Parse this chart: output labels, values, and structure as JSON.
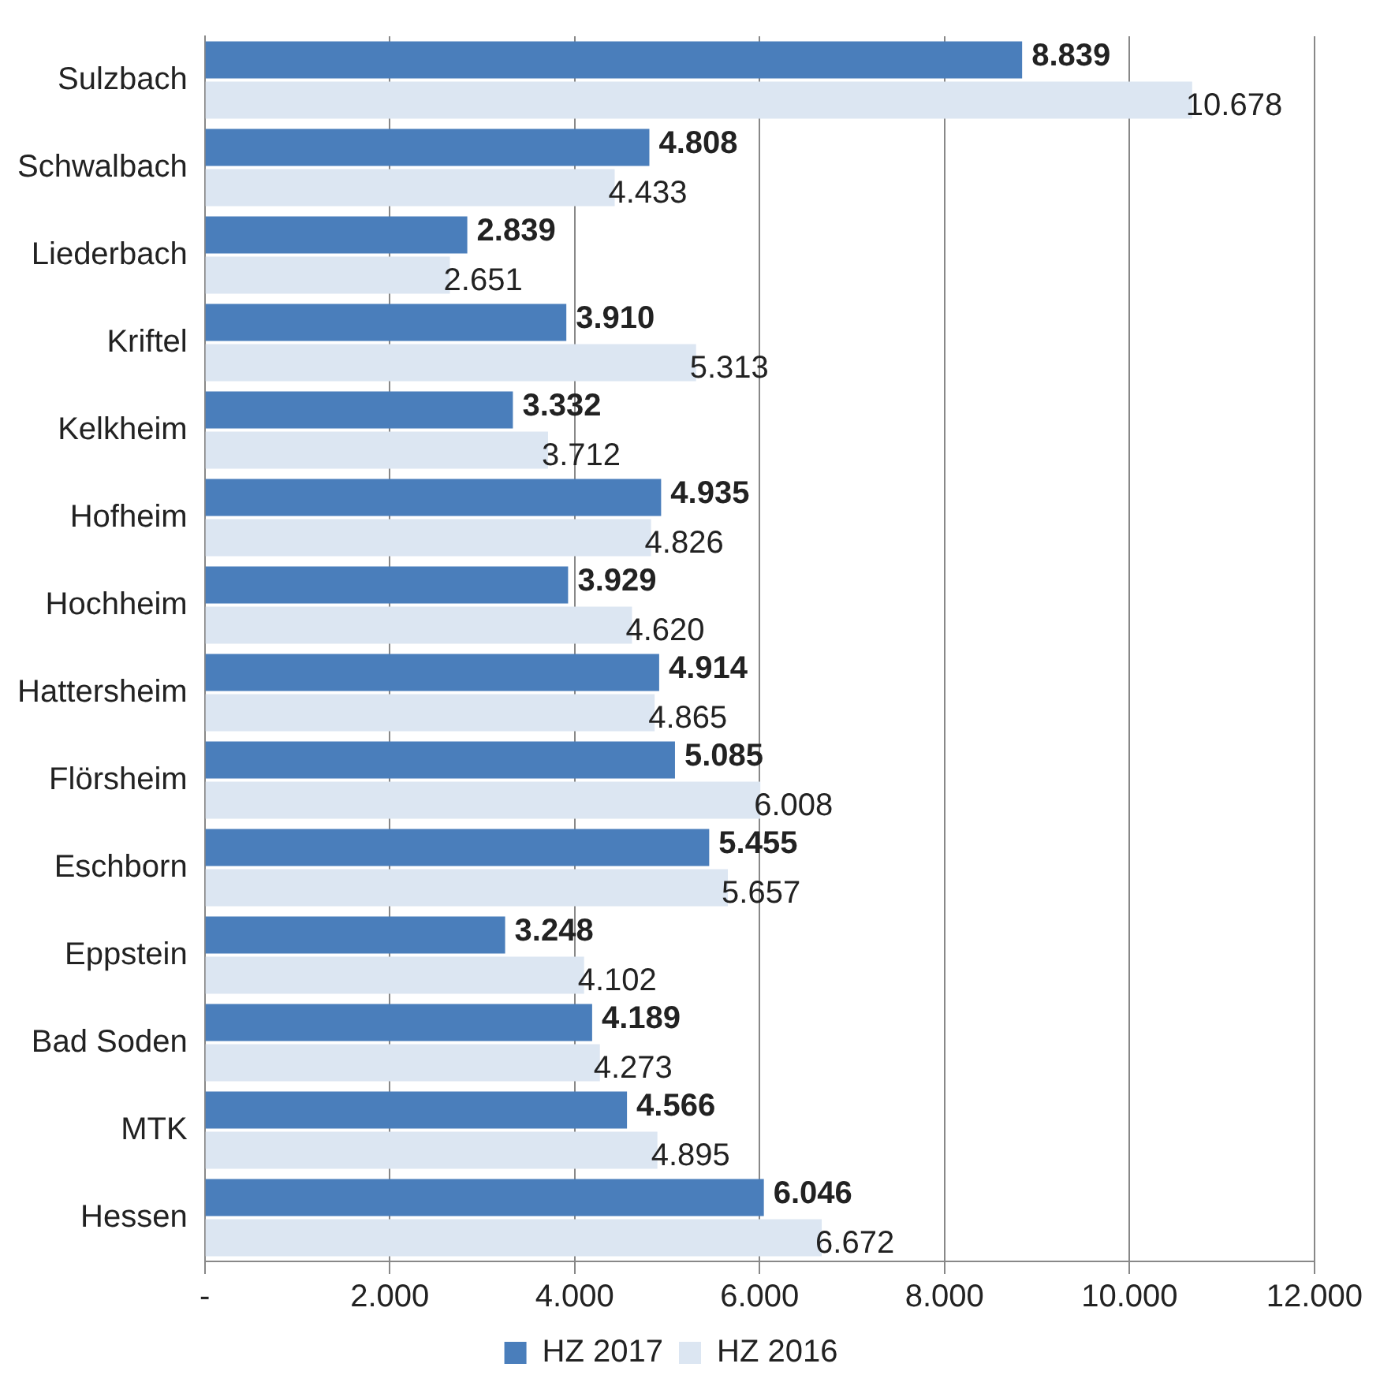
{
  "chart_data": {
    "type": "bar",
    "orientation": "horizontal",
    "categories": [
      "Sulzbach",
      "Schwalbach",
      "Liederbach",
      "Kriftel",
      "Kelkheim",
      "Hofheim",
      "Hochheim",
      "Hattersheim",
      "Flörsheim",
      "Eschborn",
      "Eppstein",
      "Bad Soden",
      "MTK",
      "Hessen"
    ],
    "series": [
      {
        "name": "HZ 2017",
        "color": "#4a7ebb",
        "values": [
          8839,
          4808,
          2839,
          3910,
          3332,
          4935,
          3929,
          4914,
          5085,
          5455,
          3248,
          4189,
          4566,
          6046
        ],
        "value_labels": [
          "8.839",
          "4.808",
          "2.839",
          "3.910",
          "3.332",
          "4.935",
          "3.929",
          "4.914",
          "5.085",
          "5.455",
          "3.248",
          "4.189",
          "4.566",
          "6.046"
        ]
      },
      {
        "name": "HZ 2016",
        "color": "#dce6f2",
        "values": [
          10678,
          4433,
          2651,
          5313,
          3712,
          4826,
          4620,
          4865,
          6008,
          5657,
          4102,
          4273,
          4895,
          6672
        ],
        "value_labels": [
          "10.678",
          "4.433",
          "2.651",
          "5.313",
          "3.712",
          "4.826",
          "4.620",
          "4.865",
          "6.008",
          "5.657",
          "4.102",
          "4.273",
          "4.895",
          "6.672"
        ]
      }
    ],
    "xlim": [
      0,
      12000
    ],
    "xticks": [
      {
        "value": 0,
        "label": "-"
      },
      {
        "value": 2000,
        "label": "2.000"
      },
      {
        "value": 4000,
        "label": "4.000"
      },
      {
        "value": 6000,
        "label": "6.000"
      },
      {
        "value": 8000,
        "label": "8.000"
      },
      {
        "value": 10000,
        "label": "10.000"
      },
      {
        "value": 12000,
        "label": "12.000"
      }
    ],
    "grid": "x",
    "legend": "bottom"
  }
}
